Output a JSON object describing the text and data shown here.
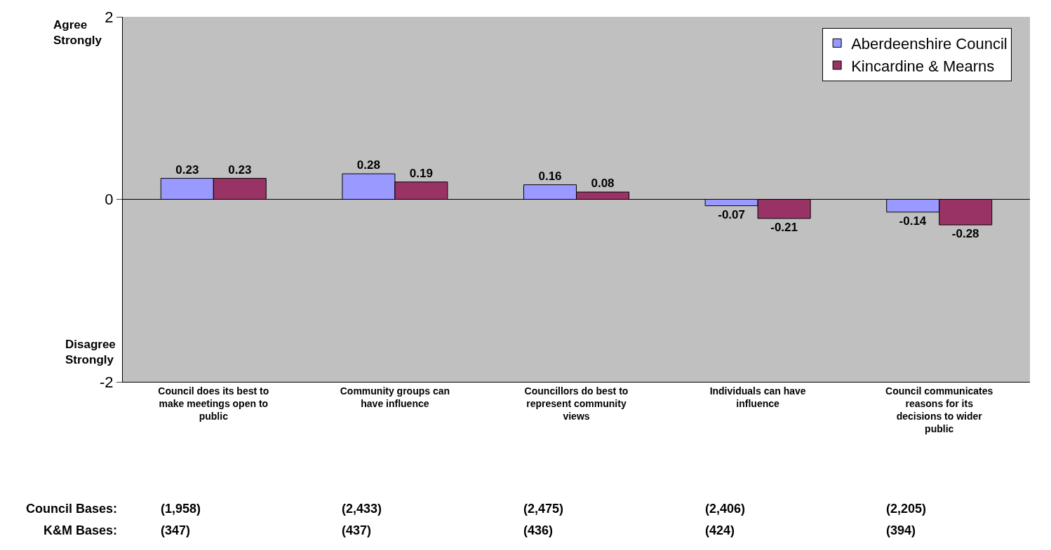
{
  "chart_data": {
    "type": "bar",
    "categories": [
      "Council does its best to make meetings open to public",
      "Community groups can have influence",
      "Councillors do best to represent community views",
      "Individuals can have influence",
      "Council communicates reasons for its decisions to wider public"
    ],
    "series": [
      {
        "name": "Aberdeenshire Council",
        "color": "#9999ff",
        "values": [
          0.23,
          0.28,
          0.16,
          -0.07,
          -0.14
        ]
      },
      {
        "name": "Kincardine & Mearns",
        "color": "#993366",
        "values": [
          0.23,
          0.19,
          0.08,
          -0.21,
          -0.28
        ]
      }
    ],
    "ylim": [
      -2,
      2
    ],
    "yticks": [
      -2,
      0,
      2
    ],
    "ref_lines": [
      {
        "axis": "y",
        "value": 0,
        "color": "#000000"
      }
    ],
    "data_labels": true,
    "legend": "top right",
    "annotations": [
      "Agree Strongly",
      "Disagree Strongly",
      "Council Bases:",
      "(1,958)",
      "(2,433)",
      "(2,475)",
      "(2,406)",
      "(2,205)",
      "K&M Bases:",
      "(347)",
      "(437)",
      "(436)",
      "(424)",
      "(394)"
    ]
  }
}
